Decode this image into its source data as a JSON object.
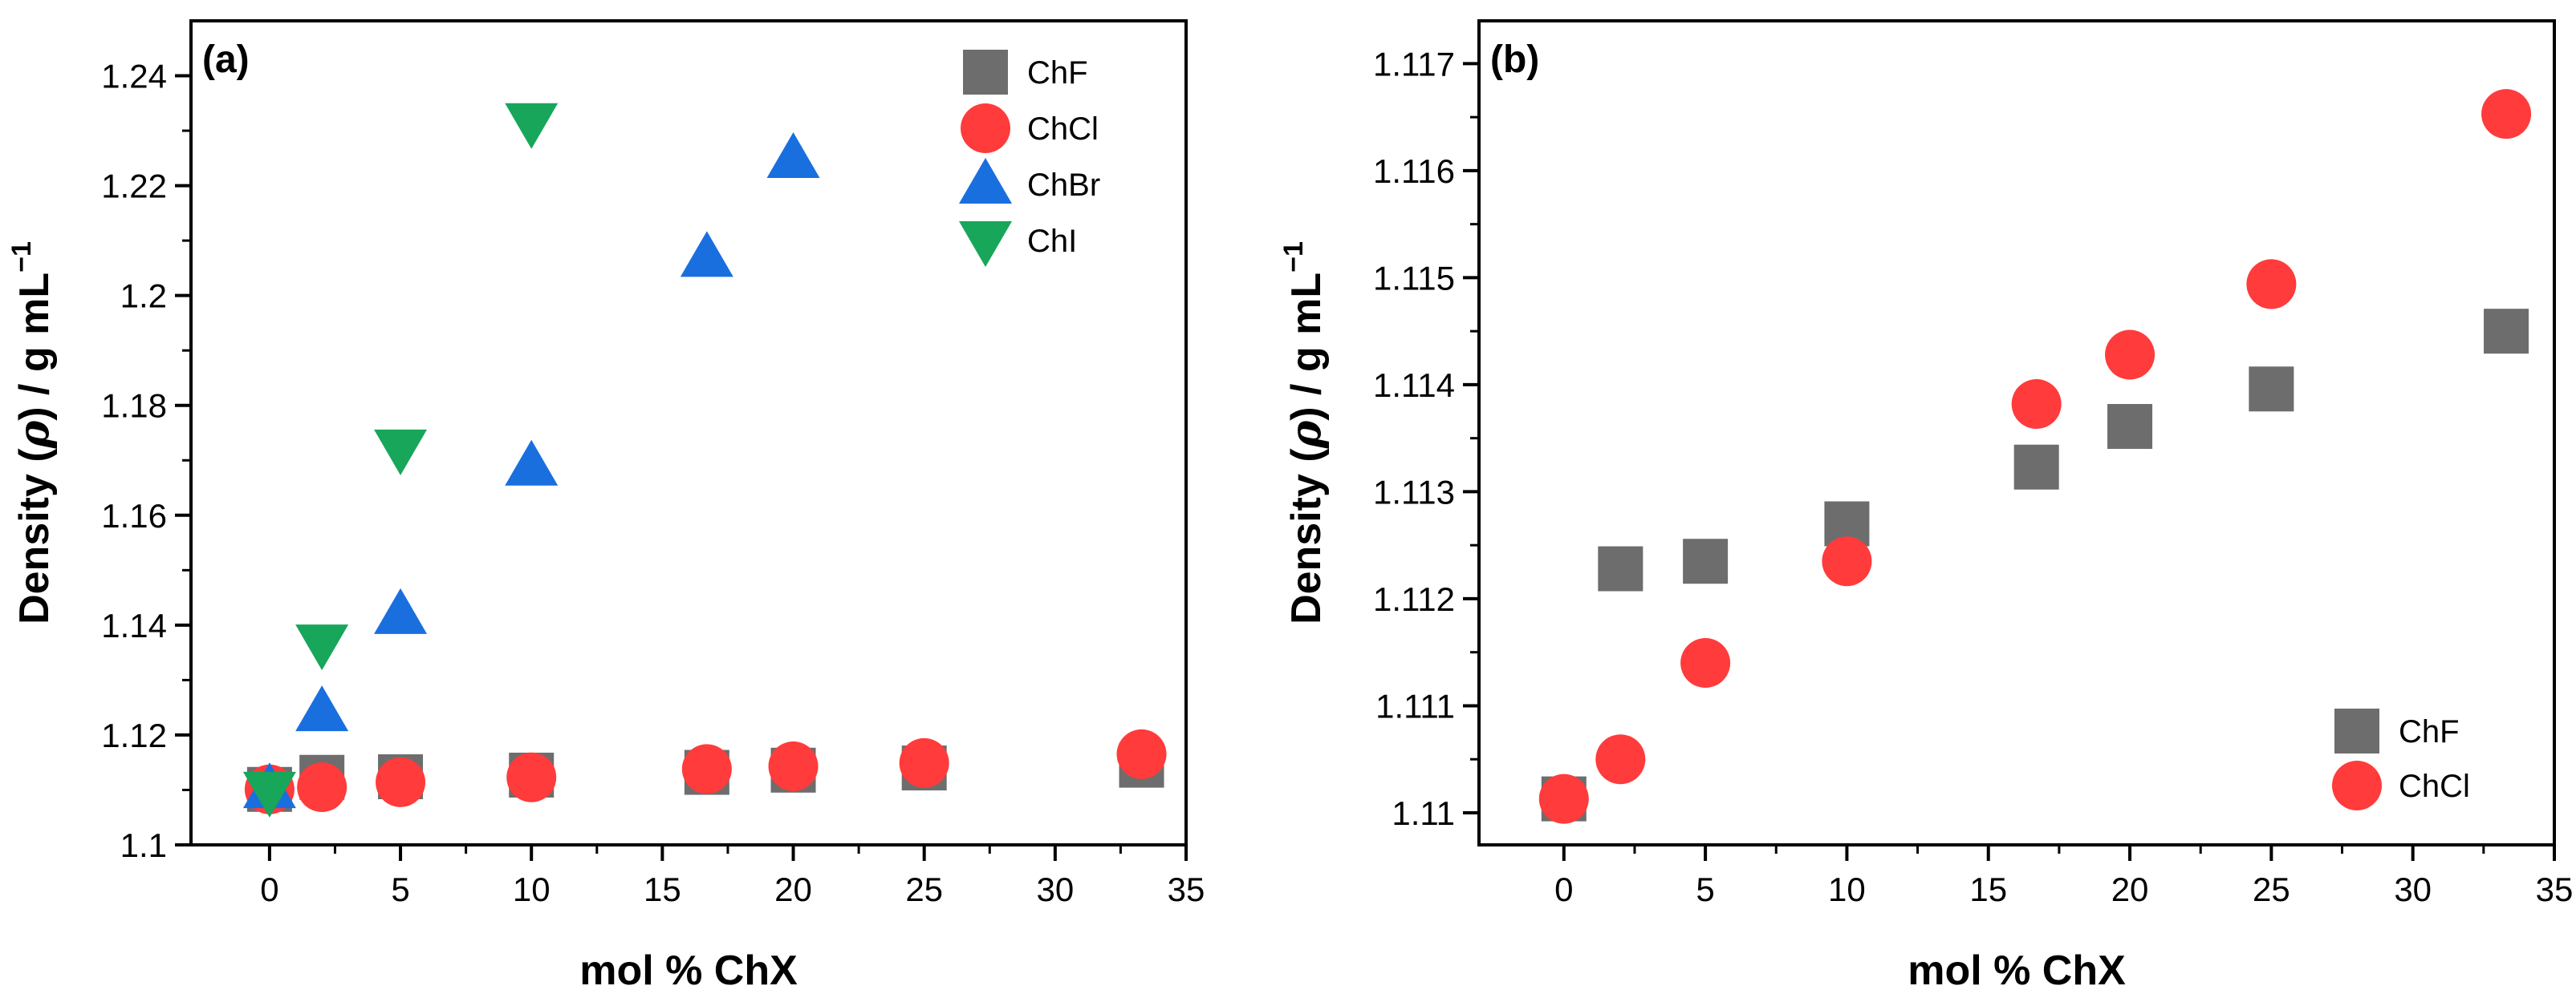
{
  "chart_data": [
    {
      "type": "scatter",
      "panel_label": "(a)",
      "xlabel": "mol % ChX",
      "ylabel": "Density (ρ) / g mL⁻¹",
      "ylabel_parts": {
        "pre": "Density (",
        "rho": "ρ",
        "post": ") / g mL",
        "sup": "−1"
      },
      "xlim": [
        -3,
        35
      ],
      "ylim": [
        1.1,
        1.25
      ],
      "xticks": [
        0,
        5,
        10,
        15,
        20,
        25,
        30,
        35
      ],
      "xtick_labels": [
        "0",
        "5",
        "10",
        "15",
        "20",
        "25",
        "30",
        "35"
      ],
      "yticks": [
        1.1,
        1.12,
        1.14,
        1.16,
        1.18,
        1.2,
        1.22,
        1.24
      ],
      "ytick_labels": [
        "1.1",
        "1.12",
        "1.14",
        "1.16",
        "1.18",
        "1.2",
        "1.22",
        "1.24"
      ],
      "legend_position": "top-right",
      "series": [
        {
          "name": "ChF",
          "marker": "square",
          "color": "#6d6d6d",
          "x": [
            0,
            2,
            5,
            10,
            16.7,
            20,
            25,
            33.3
          ],
          "y": [
            1.1101,
            1.1123,
            1.1124,
            1.1127,
            1.1132,
            1.1136,
            1.114,
            1.1145
          ]
        },
        {
          "name": "ChCl",
          "marker": "circle",
          "color": "#ff3b3b",
          "x": [
            0,
            2,
            5,
            10,
            16.7,
            20,
            25,
            33.3
          ],
          "y": [
            1.1101,
            1.1105,
            1.1114,
            1.1123,
            1.1138,
            1.1143,
            1.1149,
            1.1165
          ]
        },
        {
          "name": "ChBr",
          "marker": "triangle-up",
          "color": "#1a6fdf",
          "x": [
            0,
            2,
            5,
            10,
            16.7,
            20
          ],
          "y": [
            1.1102,
            1.1242,
            1.1419,
            1.1689,
            1.2069,
            1.2249
          ]
        },
        {
          "name": "ChI",
          "marker": "triangle-down",
          "color": "#17a65a",
          "x": [
            0,
            2,
            5,
            10
          ],
          "y": [
            1.1098,
            1.1366,
            1.1721,
            1.2315
          ]
        }
      ]
    },
    {
      "type": "scatter",
      "panel_label": "(b)",
      "xlabel": "mol % ChX",
      "ylabel": "Density (ρ) / g mL⁻¹",
      "ylabel_parts": {
        "pre": "Density (",
        "rho": "ρ",
        "post": ") / g mL",
        "sup": "−1"
      },
      "xlim": [
        -3,
        35
      ],
      "ylim": [
        1.1097,
        1.1174
      ],
      "xticks": [
        0,
        5,
        10,
        15,
        20,
        25,
        30,
        35
      ],
      "xtick_labels": [
        "0",
        "5",
        "10",
        "15",
        "20",
        "25",
        "30",
        "35"
      ],
      "yticks": [
        1.11,
        1.111,
        1.112,
        1.113,
        1.114,
        1.115,
        1.116,
        1.117
      ],
      "ytick_labels": [
        "1.11",
        "1.111",
        "1.112",
        "1.113",
        "1.114",
        "1.115",
        "1.116",
        "1.117"
      ],
      "legend_position": "bottom-right",
      "series": [
        {
          "name": "ChF",
          "marker": "square",
          "color": "#6d6d6d",
          "x": [
            0,
            2,
            5,
            10,
            16.7,
            20,
            25,
            33.3
          ],
          "y": [
            1.11013,
            1.11228,
            1.11235,
            1.1127,
            1.11323,
            1.11361,
            1.11396,
            1.1145
          ]
        },
        {
          "name": "ChCl",
          "marker": "circle",
          "color": "#ff3b3b",
          "x": [
            0,
            2,
            5,
            10,
            16.7,
            20,
            25,
            33.3
          ],
          "y": [
            1.11013,
            1.1105,
            1.1114,
            1.11235,
            1.11382,
            1.11428,
            1.11494,
            1.11653
          ]
        }
      ]
    }
  ]
}
